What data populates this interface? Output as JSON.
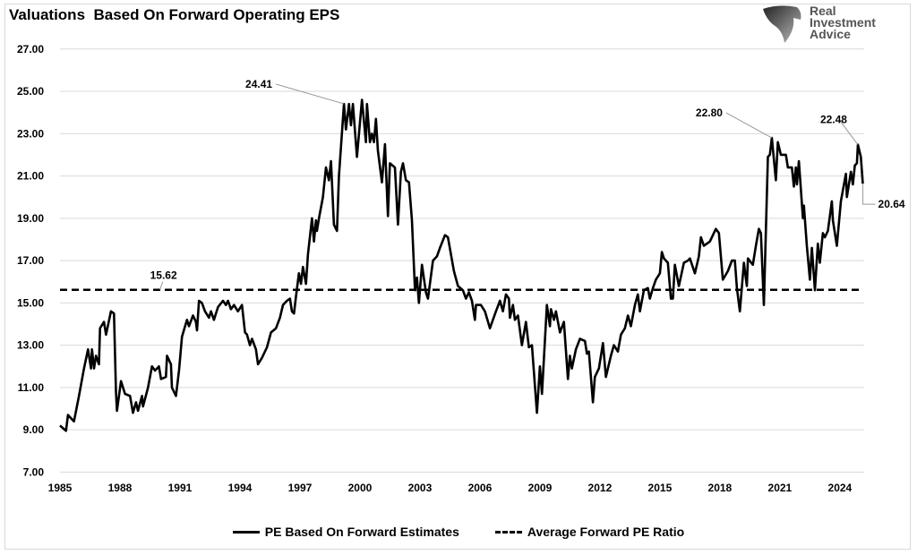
{
  "title": "Valuations  Based On Forward Operating EPS",
  "logo": {
    "lines": [
      "Real",
      "Investment",
      "Advice"
    ],
    "icon": "eagle-head-logo"
  },
  "chart_data": {
    "type": "line",
    "title": "Valuations  Based On Forward Operating EPS",
    "xlabel": "",
    "ylabel": "",
    "xlim": [
      1985,
      2025.2
    ],
    "ylim": [
      7,
      27
    ],
    "grid": true,
    "legend_position": "bottom",
    "x_ticks": [
      "1985",
      "1988",
      "1991",
      "1994",
      "1997",
      "2000",
      "2003",
      "2006",
      "2009",
      "2012",
      "2015",
      "2018",
      "2021",
      "2024"
    ],
    "y_ticks": [
      "7.00",
      "9.00",
      "11.00",
      "13.00",
      "15.00",
      "17.00",
      "19.00",
      "21.00",
      "23.00",
      "25.00",
      "27.00"
    ],
    "series": [
      {
        "name": "PE Based On Forward Estimates",
        "style": "solid",
        "color": "#000000",
        "x": [
          1985.0,
          1985.3,
          1985.4,
          1985.7,
          1985.95,
          1986.2,
          1986.4,
          1986.55,
          1986.6,
          1986.7,
          1986.8,
          1986.95,
          1987.0,
          1987.2,
          1987.3,
          1987.55,
          1987.7,
          1987.8,
          1987.85,
          1988.05,
          1988.25,
          1988.5,
          1988.65,
          1988.8,
          1988.9,
          1989.1,
          1989.15,
          1989.4,
          1989.6,
          1989.75,
          1989.95,
          1990.05,
          1990.3,
          1990.35,
          1990.55,
          1990.6,
          1990.8,
          1990.95,
          1991.1,
          1991.35,
          1991.45,
          1991.65,
          1991.8,
          1991.85,
          1991.95,
          1992.1,
          1992.25,
          1992.45,
          1992.55,
          1992.7,
          1992.9,
          1993.15,
          1993.3,
          1993.4,
          1993.55,
          1993.7,
          1993.9,
          1994.1,
          1994.25,
          1994.35,
          1994.5,
          1994.6,
          1994.8,
          1994.9,
          1995.1,
          1995.35,
          1995.55,
          1995.8,
          1996.0,
          1996.15,
          1996.35,
          1996.5,
          1996.6,
          1996.7,
          1996.8,
          1996.95,
          1997.05,
          1997.15,
          1997.3,
          1997.4,
          1997.6,
          1997.7,
          1997.8,
          1997.85,
          1997.95,
          1998.15,
          1998.3,
          1998.45,
          1998.55,
          1998.7,
          1998.85,
          1998.95,
          1999.2,
          1999.3,
          1999.45,
          1999.55,
          1999.65,
          1999.85,
          2000.1,
          2000.3,
          2000.35,
          2000.5,
          2000.6,
          2000.7,
          2000.8,
          2000.9,
          2001.1,
          2001.25,
          2001.4,
          2001.5,
          2001.75,
          2001.9,
          2002.05,
          2002.15,
          2002.3,
          2002.45,
          2002.6,
          2002.75,
          2002.85,
          2002.95,
          2003.1,
          2003.3,
          2003.4,
          2003.65,
          2003.85,
          2004.0,
          2004.25,
          2004.4,
          2004.7,
          2004.9,
          2005.15,
          2005.3,
          2005.45,
          2005.6,
          2005.75,
          2005.8,
          2006.05,
          2006.25,
          2006.5,
          2006.8,
          2007.0,
          2007.15,
          2007.3,
          2007.45,
          2007.5,
          2007.65,
          2007.75,
          2007.9,
          2008.1,
          2008.3,
          2008.45,
          2008.6,
          2008.85,
          2009.0,
          2009.1,
          2009.35,
          2009.5,
          2009.55,
          2009.7,
          2009.8,
          2010.0,
          2010.2,
          2010.4,
          2010.5,
          2010.6,
          2010.8,
          2011.0,
          2011.25,
          2011.35,
          2011.45,
          2011.65,
          2011.75,
          2011.95,
          2012.15,
          2012.3,
          2012.55,
          2012.7,
          2012.9,
          2013.05,
          2013.25,
          2013.4,
          2013.55,
          2013.75,
          2013.9,
          2014.0,
          2014.2,
          2014.4,
          2014.5,
          2014.65,
          2014.8,
          2015.0,
          2015.1,
          2015.2,
          2015.4,
          2015.55,
          2015.65,
          2015.75,
          2015.95,
          2016.2,
          2016.4,
          2016.5,
          2016.75,
          2016.95,
          2017.05,
          2017.2,
          2017.5,
          2017.8,
          2017.95,
          2018.15,
          2018.4,
          2018.6,
          2018.75,
          2018.85,
          2019.0,
          2019.2,
          2019.35,
          2019.4,
          2019.65,
          2019.8,
          2019.95,
          2020.05,
          2020.2,
          2020.4,
          2020.5,
          2020.6,
          2020.8,
          2020.9,
          2021.05,
          2021.3,
          2021.4,
          2021.6,
          2021.7,
          2021.8,
          2021.85,
          2021.95,
          2022.15,
          2022.2,
          2022.35,
          2022.5,
          2022.6,
          2022.75,
          2022.9,
          2023.0,
          2023.15,
          2023.25,
          2023.4,
          2023.6,
          2023.65,
          2023.85,
          2024.05,
          2024.3,
          2024.35,
          2024.55,
          2024.65,
          2024.75,
          2024.85,
          2024.9,
          2025.05,
          2025.15
        ],
        "y": [
          9.2,
          8.95,
          9.7,
          9.4,
          10.6,
          11.9,
          12.8,
          11.9,
          12.8,
          11.9,
          12.5,
          12.1,
          13.8,
          14.1,
          13.5,
          14.6,
          14.5,
          10.8,
          9.9,
          11.3,
          10.7,
          10.6,
          9.8,
          10.3,
          9.9,
          10.6,
          10.1,
          11.0,
          12.0,
          11.8,
          12.0,
          11.4,
          11.5,
          12.5,
          12.1,
          11.0,
          10.6,
          11.8,
          13.4,
          14.2,
          13.9,
          14.4,
          14.1,
          13.7,
          15.1,
          15.0,
          14.6,
          14.3,
          14.6,
          14.2,
          14.8,
          15.1,
          14.9,
          15.1,
          14.7,
          14.9,
          14.6,
          14.9,
          13.6,
          13.5,
          13.0,
          13.3,
          12.8,
          12.1,
          12.4,
          12.9,
          13.6,
          13.8,
          14.3,
          14.9,
          15.1,
          15.2,
          14.6,
          14.5,
          15.3,
          16.4,
          15.9,
          16.7,
          15.9,
          17.3,
          19.0,
          17.9,
          18.9,
          18.4,
          19.0,
          20.0,
          21.4,
          20.8,
          21.7,
          18.7,
          18.4,
          21.0,
          24.41,
          23.2,
          24.4,
          23.4,
          24.4,
          21.9,
          24.6,
          22.6,
          24.4,
          22.6,
          23.0,
          22.6,
          23.7,
          22.2,
          20.7,
          22.5,
          19.1,
          21.6,
          21.4,
          18.7,
          21.2,
          21.6,
          20.8,
          20.7,
          18.9,
          15.6,
          16.2,
          15.0,
          16.8,
          15.5,
          15.2,
          17.0,
          17.2,
          17.6,
          18.2,
          18.1,
          16.5,
          15.8,
          15.6,
          15.2,
          15.5,
          15.1,
          14.2,
          14.9,
          14.9,
          14.6,
          13.8,
          14.6,
          15.1,
          14.6,
          15.4,
          15.2,
          14.3,
          14.9,
          14.2,
          14.4,
          13.0,
          14.1,
          12.9,
          13.0,
          9.8,
          12.0,
          10.7,
          14.9,
          13.9,
          14.7,
          14.2,
          14.6,
          13.6,
          14.1,
          11.4,
          12.5,
          11.9,
          12.8,
          13.3,
          13.2,
          12.6,
          12.7,
          10.3,
          11.5,
          11.9,
          13.1,
          11.5,
          12.5,
          13.0,
          12.7,
          13.5,
          13.8,
          14.4,
          13.9,
          14.9,
          15.4,
          14.6,
          15.6,
          15.7,
          15.2,
          15.7,
          16.1,
          16.4,
          17.4,
          17.1,
          16.9,
          15.2,
          15.2,
          16.8,
          15.8,
          16.9,
          17.0,
          17.1,
          16.4,
          17.2,
          18.1,
          17.7,
          17.9,
          18.5,
          18.3,
          16.1,
          16.5,
          17.0,
          17.0,
          15.7,
          14.6,
          16.9,
          15.8,
          17.1,
          16.8,
          17.7,
          18.5,
          18.3,
          14.9,
          21.9,
          22.0,
          22.8,
          20.8,
          22.6,
          22.0,
          22.0,
          21.4,
          21.4,
          20.5,
          21.4,
          20.6,
          21.7,
          19.0,
          19.6,
          17.7,
          16.1,
          17.6,
          15.6,
          17.8,
          16.9,
          18.3,
          18.1,
          18.4,
          19.8,
          18.9,
          17.7,
          19.8,
          21.1,
          20.0,
          21.2,
          20.6,
          21.5,
          21.6,
          22.48,
          21.9,
          20.64
        ]
      },
      {
        "name": "Average Forward PE Ratio",
        "style": "dashed",
        "color": "#000000",
        "value": 15.62
      }
    ],
    "annotations": [
      {
        "text": "24.41",
        "x": 1999.2,
        "y": 24.41
      },
      {
        "text": "15.62",
        "x": 1990.0,
        "y": 15.62
      },
      {
        "text": "22.80",
        "x": 2020.6,
        "y": 22.8
      },
      {
        "text": "22.48",
        "x": 2024.9,
        "y": 22.48
      },
      {
        "text": "20.64",
        "x": 2025.15,
        "y": 20.64,
        "color": "#ff0000"
      }
    ]
  }
}
